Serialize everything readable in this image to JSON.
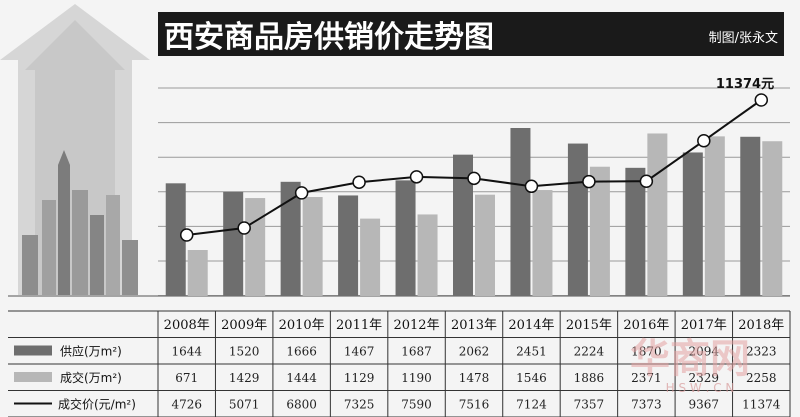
{
  "chart_data": {
    "type": "bar",
    "title": "西安商品房供销价走势图",
    "credit": "制图/张永文",
    "categories": [
      "2008年",
      "2009年",
      "2010年",
      "2011年",
      "2012年",
      "2013年",
      "2014年",
      "2015年",
      "2016年",
      "2017年",
      "2018年"
    ],
    "series": [
      {
        "name": "供应(万m²)",
        "type": "bar",
        "color": "#6e6e6e",
        "values": [
          1644,
          1520,
          1666,
          1467,
          1687,
          2062,
          2451,
          2224,
          1870,
          2094,
          2323
        ]
      },
      {
        "name": "成交(万m²)",
        "type": "bar",
        "color": "#b7b7b7",
        "values": [
          671,
          1429,
          1444,
          1129,
          1190,
          1478,
          1546,
          1886,
          2371,
          2329,
          2258
        ]
      },
      {
        "name": "成交价(元/m²)",
        "type": "line",
        "color": "#111111",
        "values": [
          4726,
          5071,
          6800,
          7325,
          7590,
          7516,
          7124,
          7357,
          7373,
          9367,
          11374
        ]
      }
    ],
    "annotation": "11374元",
    "watermark": "华商网",
    "watermark_url": "H S W . C N"
  }
}
